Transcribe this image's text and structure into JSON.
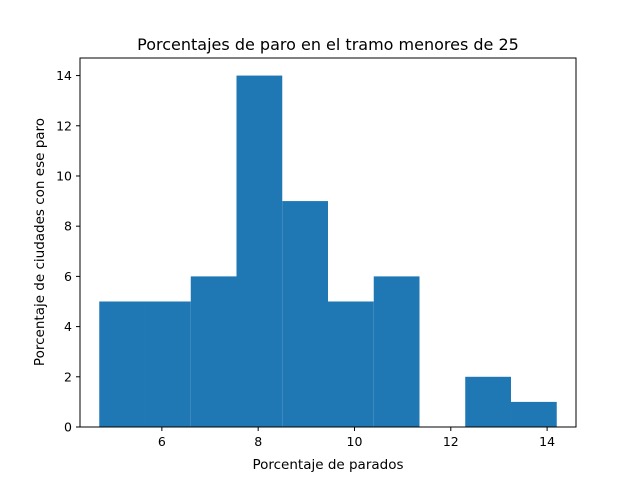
{
  "chart_data": {
    "type": "bar",
    "subtype": "histogram",
    "title": "Porcentajes de paro en el tramo menores de 25",
    "xlabel": "Porcentaje de parados",
    "ylabel": "Porcentaje de ciudades con ese paro",
    "bin_edges": [
      4.7,
      5.65,
      6.6,
      7.55,
      8.5,
      9.45,
      10.4,
      11.35,
      12.3,
      13.25,
      14.2
    ],
    "counts": [
      5,
      5,
      6,
      14,
      9,
      5,
      6,
      0,
      2,
      1
    ],
    "xlim": [
      4.3,
      14.6
    ],
    "ylim": [
      0,
      14.7
    ],
    "xticks": [
      6,
      8,
      10,
      12,
      14
    ],
    "yticks": [
      0,
      2,
      4,
      6,
      8,
      10,
      12,
      14
    ],
    "xtick_labels": [
      "6",
      "8",
      "10",
      "12",
      "14"
    ],
    "ytick_labels": [
      "0",
      "2",
      "4",
      "6",
      "8",
      "10",
      "12",
      "14"
    ],
    "bar_color": "#1f77b4",
    "grid": false,
    "legend": "none"
  }
}
